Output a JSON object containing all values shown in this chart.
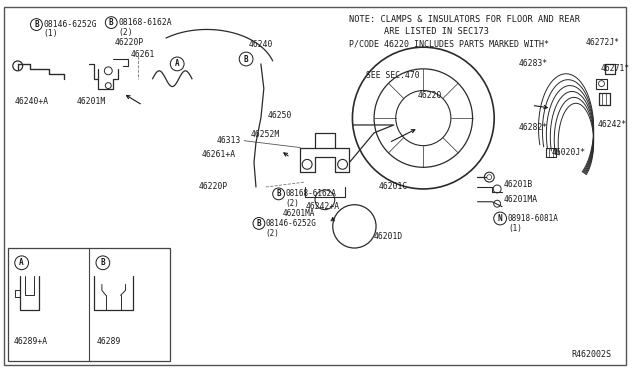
{
  "bg_color": "#ffffff",
  "border_color": "#333333",
  "fig_width": 6.4,
  "fig_height": 3.72,
  "note_line1": "NOTE: CLAMPS & INSULATORS FOR FLOOR AND REAR",
  "note_line2": "ARE LISTED IN SEC173",
  "note_line3": "P/CODE 46220 INCLUDES PARTS MARKED WITH*",
  "ref_code": "R462002S",
  "text_color": "#1a1a1a",
  "line_color": "#2a2a2a"
}
